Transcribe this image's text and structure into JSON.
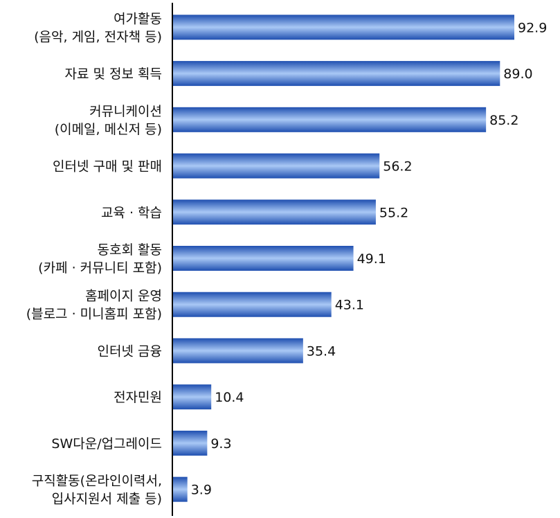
{
  "chart_data": {
    "type": "bar",
    "orientation": "horizontal",
    "categories": [
      [
        "여가활동",
        "(음악, 게임, 전자책 등)"
      ],
      [
        "자료 및 정보 획득"
      ],
      [
        "커뮤니케이션",
        "(이메일, 메신저 등)"
      ],
      [
        "인터넷 구매 및 판매"
      ],
      [
        "교육 · 학습"
      ],
      [
        "동호회 활동",
        "(카페 · 커뮤니티 포함)"
      ],
      [
        "홈페이지 운영",
        "(블로그 · 미니홈피 포함)"
      ],
      [
        "인터넷 금융"
      ],
      [
        "전자민원"
      ],
      [
        "SW다운/업그레이드"
      ],
      [
        "구직활동(온라인이력서,",
        "입사지원서 제출 등)"
      ]
    ],
    "values": [
      92.9,
      89.0,
      85.2,
      56.2,
      55.2,
      49.1,
      43.1,
      35.4,
      10.4,
      9.3,
      3.9
    ],
    "value_labels": [
      "92.9",
      "89.0",
      "85.2",
      "56.2",
      "55.2",
      "49.1",
      "43.1",
      "35.4",
      "10.4",
      "9.3",
      "3.9"
    ],
    "xlim": [
      0,
      100
    ],
    "grid": false,
    "legend": "none",
    "title": "",
    "xlabel": "",
    "ylabel": "",
    "colors": {
      "bar_dark": "#1f4fb0",
      "bar_mid": "#4f86e0",
      "bar_light": "#a9c8f5",
      "axis": "#000000"
    }
  }
}
